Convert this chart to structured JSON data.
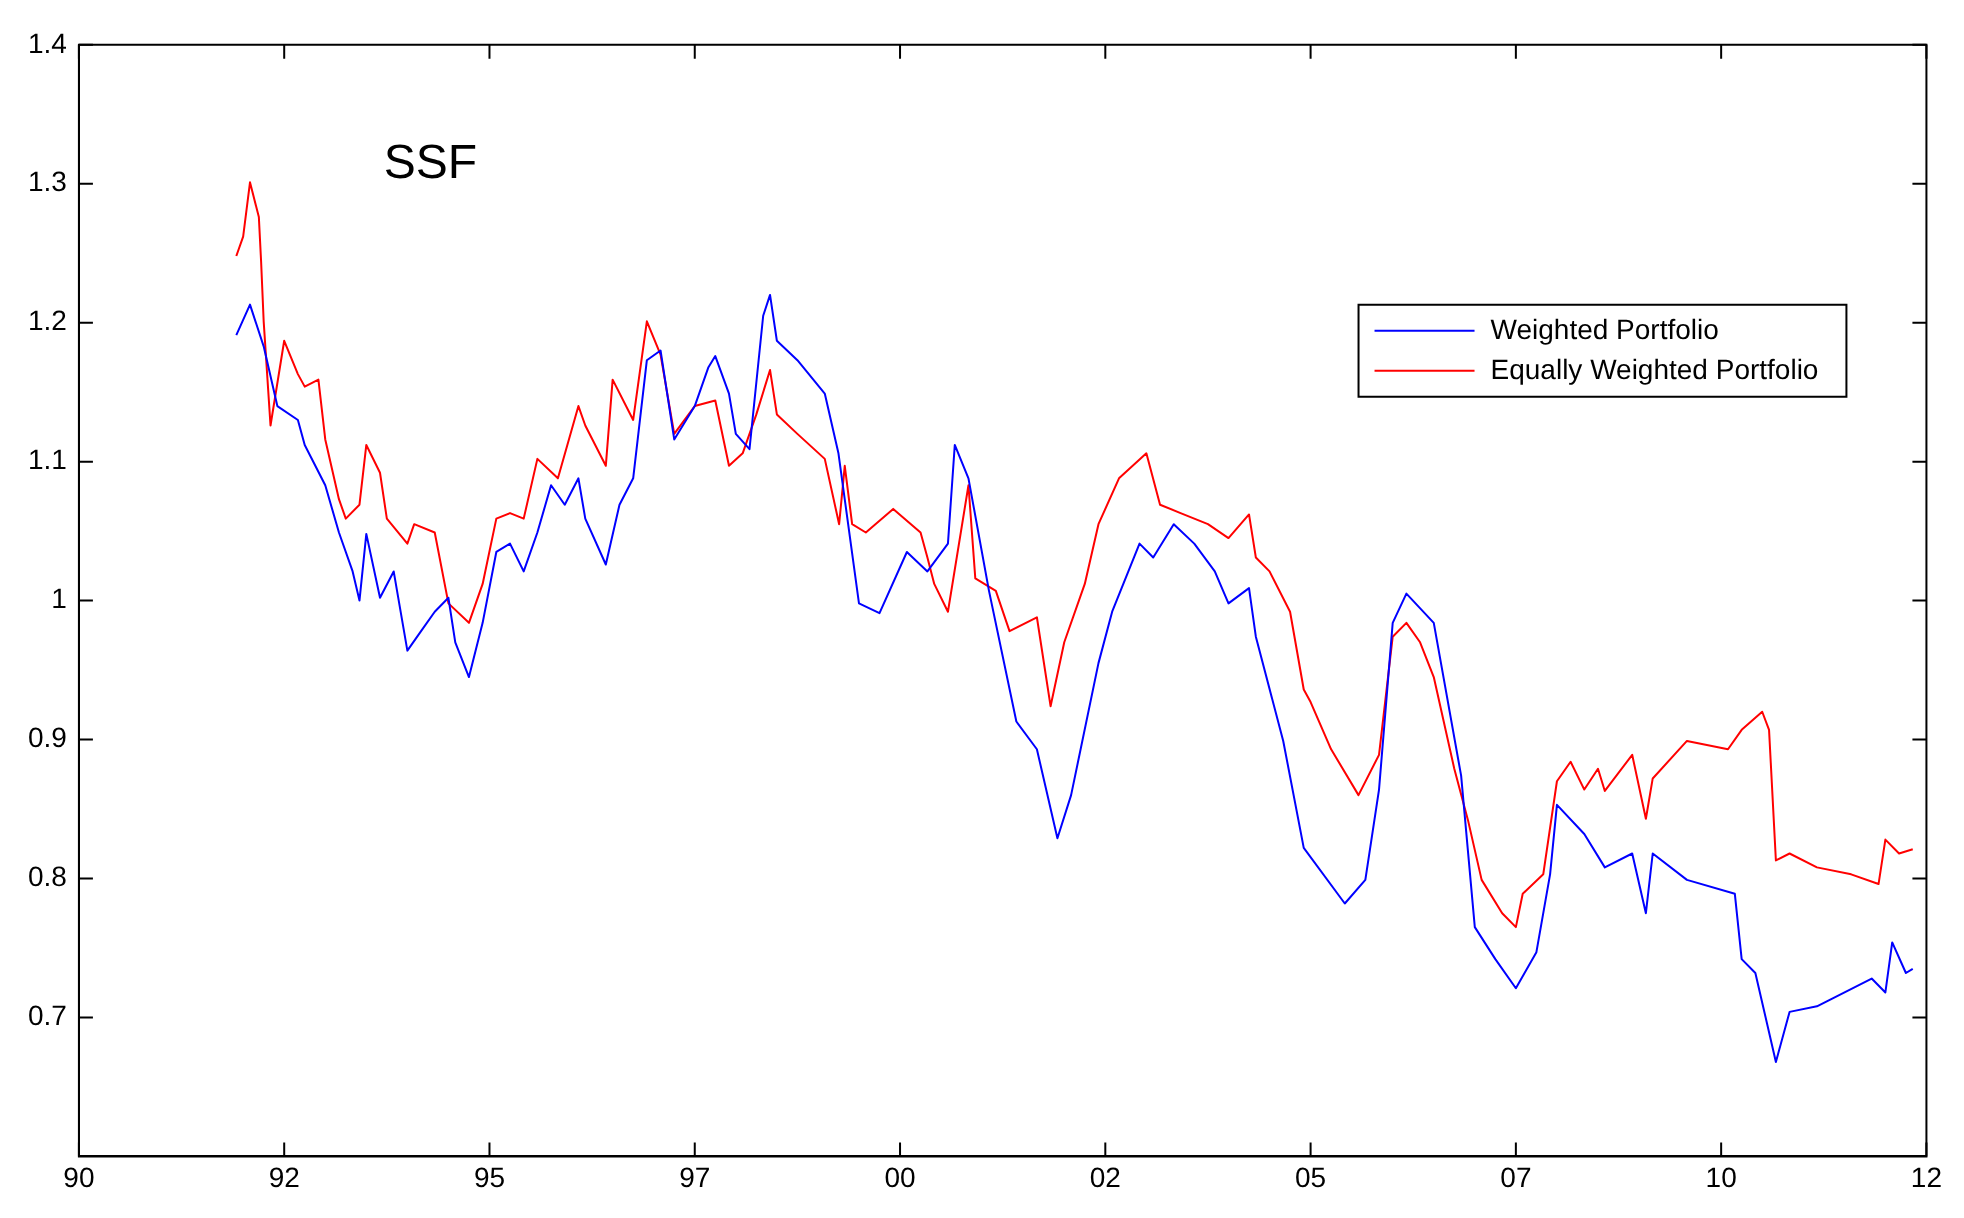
{
  "chart_data": {
    "type": "line",
    "title": "SSF",
    "xlim": [
      "1990-01",
      "2012-07"
    ],
    "xticks": [
      {
        "value": "1990-01",
        "label": "90"
      },
      {
        "value": "1992-07",
        "label": "92"
      },
      {
        "value": "1995-01",
        "label": "95"
      },
      {
        "value": "1997-07",
        "label": "97"
      },
      {
        "value": "2000-01",
        "label": "00"
      },
      {
        "value": "2002-07",
        "label": "02"
      },
      {
        "value": "2005-01",
        "label": "05"
      },
      {
        "value": "2007-07",
        "label": "07"
      },
      {
        "value": "2010-01",
        "label": "10"
      },
      {
        "value": "2012-07",
        "label": "12"
      }
    ],
    "ylim": [
      0.6,
      1.4
    ],
    "yticks": [
      0.7,
      0.8,
      0.9,
      1,
      1.1,
      1.2,
      1.3,
      1.4
    ],
    "grid": false,
    "legend": "top right",
    "marker": "none",
    "line_style": "solid",
    "series": [
      {
        "name": "Weighted Portfolio",
        "color": "#0000ff",
        "x": [
          "1991-12",
          "1992-02",
          "1992-04",
          "1992-06",
          "1992-09",
          "1992-10",
          "1993-01",
          "1993-03",
          "1993-05",
          "1993-06",
          "1993-07",
          "1993-09",
          "1993-11",
          "1994-01",
          "1994-03",
          "1994-05",
          "1994-07",
          "1994-08",
          "1994-10",
          "1994-12",
          "1995-02",
          "1995-04",
          "1995-06",
          "1995-08",
          "1995-10",
          "1995-12",
          "1996-02",
          "1996-03",
          "1996-06",
          "1996-08",
          "1996-10",
          "1996-12",
          "1997-02",
          "1997-04",
          "1997-07",
          "1997-09",
          "1997-10",
          "1997-12",
          "1998-01",
          "1998-03",
          "1998-05",
          "1998-06",
          "1998-07",
          "1998-10",
          "1999-02",
          "1999-04",
          "1999-07",
          "1999-10",
          "2000-02",
          "2000-05",
          "2000-08",
          "2000-09",
          "2000-11",
          "2001-02",
          "2001-06",
          "2001-09",
          "2001-12",
          "2002-02",
          "2002-06",
          "2002-08",
          "2002-12",
          "2003-02",
          "2003-05",
          "2003-08",
          "2003-11",
          "2004-01",
          "2004-04",
          "2004-05",
          "2004-09",
          "2004-12",
          "2005-06",
          "2005-09",
          "2005-11",
          "2006-01",
          "2006-03",
          "2006-07",
          "2006-11",
          "2007-01",
          "2007-04",
          "2007-07",
          "2007-10",
          "2007-12",
          "2008-01",
          "2008-05",
          "2008-08",
          "2008-12",
          "2009-02",
          "2009-03",
          "2009-08",
          "2010-03",
          "2010-04",
          "2010-06",
          "2010-09",
          "2010-11",
          "2011-03",
          "2011-11",
          "2012-01",
          "2012-02",
          "2012-04",
          "2012-05"
        ],
        "values": [
          1.191,
          1.213,
          1.183,
          1.14,
          1.13,
          1.112,
          1.083,
          1.049,
          1.021,
          1.0,
          1.048,
          1.002,
          1.021,
          0.964,
          0.978,
          0.992,
          1.002,
          0.97,
          0.945,
          0.984,
          1.035,
          1.041,
          1.021,
          1.049,
          1.083,
          1.069,
          1.088,
          1.059,
          1.026,
          1.069,
          1.088,
          1.173,
          1.18,
          1.116,
          1.14,
          1.168,
          1.176,
          1.149,
          1.12,
          1.109,
          1.205,
          1.22,
          1.187,
          1.173,
          1.149,
          1.106,
          0.998,
          0.991,
          1.035,
          1.021,
          1.041,
          1.112,
          1.088,
          1.007,
          0.913,
          0.893,
          0.829,
          0.86,
          0.955,
          0.992,
          1.041,
          1.031,
          1.055,
          1.041,
          1.021,
          0.998,
          1.009,
          0.974,
          0.899,
          0.822,
          0.782,
          0.799,
          0.864,
          0.984,
          1.005,
          0.984,
          0.874,
          0.765,
          0.742,
          0.721,
          0.747,
          0.803,
          0.853,
          0.832,
          0.808,
          0.818,
          0.775,
          0.818,
          0.799,
          0.789,
          0.742,
          0.732,
          0.668,
          0.704,
          0.708,
          0.728,
          0.718,
          0.754,
          0.732,
          0.735
        ]
      },
      {
        "name": "Equally Weighted Portfolio",
        "color": "#ff0000",
        "x": [
          "1991-12",
          "1992-01",
          "1992-02",
          "1992-03-10",
          "1992-03-20",
          "1992-04",
          "1992-05",
          "1992-07",
          "1992-09",
          "1992-10",
          "1992-12",
          "1993-01",
          "1993-03",
          "1993-04",
          "1993-06",
          "1993-07",
          "1993-09",
          "1993-10",
          "1994-01",
          "1994-02",
          "1994-05",
          "1994-07",
          "1994-10",
          "1994-12",
          "1995-02",
          "1995-04",
          "1995-06",
          "1995-08",
          "1995-11",
          "1996-02",
          "1996-03",
          "1996-06",
          "1996-07",
          "1996-10",
          "1996-12",
          "1997-02",
          "1997-04",
          "1997-07",
          "1997-10",
          "1997-12",
          "1998-02",
          "1998-04",
          "1998-06",
          "1998-07",
          "1998-10",
          "1999-02",
          "1999-04-04",
          "1999-04-29",
          "1999-06",
          "1999-08",
          "1999-12",
          "2000-04",
          "2000-05",
          "2000-06",
          "2000-08",
          "2000-11",
          "2000-12",
          "2001-03",
          "2001-05",
          "2001-09",
          "2001-11",
          "2002-01",
          "2002-04",
          "2002-06",
          "2002-09",
          "2003-01",
          "2003-03",
          "2003-06",
          "2003-10",
          "2004-01",
          "2004-04",
          "2004-05",
          "2004-07",
          "2004-10",
          "2004-12",
          "2005-01",
          "2005-04",
          "2005-08",
          "2005-11",
          "2006-01",
          "2006-03",
          "2006-05",
          "2006-07",
          "2006-10",
          "2006-12",
          "2007-02",
          "2007-05",
          "2007-07",
          "2007-08",
          "2007-11",
          "2008-01",
          "2008-03",
          "2008-05",
          "2008-07",
          "2008-08",
          "2008-12",
          "2009-02",
          "2009-03",
          "2009-08",
          "2010-02",
          "2010-04",
          "2010-07",
          "2010-08",
          "2010-09",
          "2010-11",
          "2011-03",
          "2011-08",
          "2011-12",
          "2012-01",
          "2012-03",
          "2012-05"
        ],
        "values": [
          1.248,
          1.262,
          1.301,
          1.276,
          1.244,
          1.201,
          1.126,
          1.187,
          1.163,
          1.154,
          1.159,
          1.116,
          1.073,
          1.059,
          1.069,
          1.112,
          1.092,
          1.059,
          1.041,
          1.055,
          1.049,
          0.998,
          0.984,
          1.012,
          1.059,
          1.063,
          1.059,
          1.102,
          1.088,
          1.14,
          1.126,
          1.097,
          1.159,
          1.13,
          1.201,
          1.177,
          1.12,
          1.14,
          1.144,
          1.097,
          1.106,
          1.134,
          1.166,
          1.134,
          1.12,
          1.102,
          1.055,
          1.097,
          1.055,
          1.049,
          1.066,
          1.049,
          1.031,
          1.012,
          0.992,
          1.083,
          1.016,
          1.007,
          0.978,
          0.988,
          0.924,
          0.97,
          1.012,
          1.055,
          1.088,
          1.106,
          1.069,
          1.063,
          1.055,
          1.045,
          1.062,
          1.031,
          1.021,
          0.992,
          0.936,
          0.927,
          0.893,
          0.86,
          0.889,
          0.974,
          0.984,
          0.97,
          0.945,
          0.879,
          0.842,
          0.799,
          0.775,
          0.765,
          0.789,
          0.803,
          0.87,
          0.884,
          0.864,
          0.879,
          0.863,
          0.889,
          0.843,
          0.872,
          0.899,
          0.893,
          0.907,
          0.92,
          0.907,
          0.813,
          0.818,
          0.808,
          0.803,
          0.796,
          0.828,
          0.818,
          0.821
        ]
      }
    ]
  }
}
